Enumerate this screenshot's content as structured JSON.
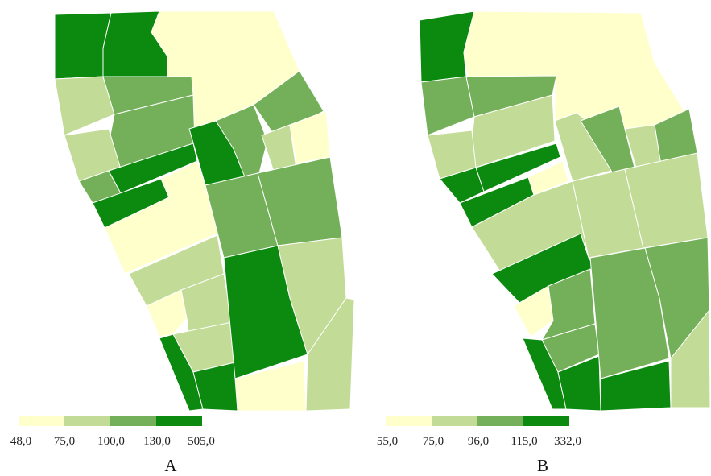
{
  "colors": {
    "class_1": "#ffffcc",
    "class_2": "#c2dc98",
    "class_3": "#74b05a",
    "class_4": "#0b8a0f"
  },
  "maps": [
    {
      "label": "A",
      "legend_ticks": [
        "48,0",
        "75,0",
        "100,0",
        "130,0",
        "505,0"
      ]
    },
    {
      "label": "B",
      "legend_ticks": [
        "55,0",
        "75,0",
        "96,0",
        "115,0",
        "332,0"
      ]
    }
  ]
}
